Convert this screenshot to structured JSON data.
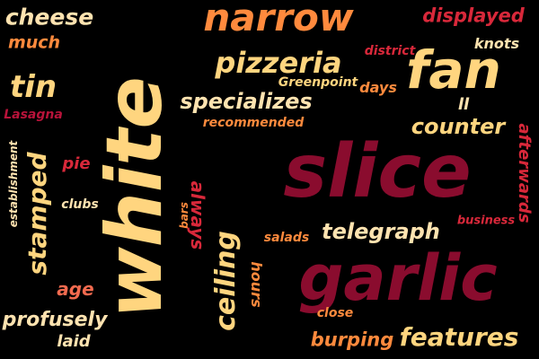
{
  "colors": {
    "background": "#000000",
    "cream": "#FFD57F",
    "peach": "#FFE3B0",
    "orange": "#FF8A3D",
    "coral": "#F26A4F",
    "red": "#D8283A",
    "crimson": "#B8133A",
    "maroon": "#8A0C2E"
  },
  "words": [
    {
      "text": "cheese",
      "color": "peach"
    },
    {
      "text": "much",
      "color": "orange"
    },
    {
      "text": "narrow",
      "color": "orange"
    },
    {
      "text": "displayed",
      "color": "red"
    },
    {
      "text": "knots",
      "color": "peach"
    },
    {
      "text": "pizzeria",
      "color": "cream"
    },
    {
      "text": "district",
      "color": "red"
    },
    {
      "text": "fan",
      "color": "cream"
    },
    {
      "text": "tin",
      "color": "cream"
    },
    {
      "text": "Greenpoint",
      "color": "cream"
    },
    {
      "text": "days",
      "color": "orange"
    },
    {
      "text": "Lasagna",
      "color": "crimson"
    },
    {
      "text": "specializes",
      "color": "peach"
    },
    {
      "text": "recommended",
      "color": "orange"
    },
    {
      "text": "ll",
      "color": "peach"
    },
    {
      "text": "counter",
      "color": "cream"
    },
    {
      "text": "white",
      "color": "cream"
    },
    {
      "text": "slice",
      "color": "maroon"
    },
    {
      "text": "establishment",
      "color": "peach"
    },
    {
      "text": "stamped",
      "color": "cream"
    },
    {
      "text": "pie",
      "color": "red"
    },
    {
      "text": "afterwards",
      "color": "red"
    },
    {
      "text": "clubs",
      "color": "peach"
    },
    {
      "text": "bars",
      "color": "orange"
    },
    {
      "text": "always",
      "color": "red"
    },
    {
      "text": "telegraph",
      "color": "peach"
    },
    {
      "text": "business",
      "color": "red"
    },
    {
      "text": "salads",
      "color": "orange"
    },
    {
      "text": "ceiling",
      "color": "cream"
    },
    {
      "text": "hours",
      "color": "orange"
    },
    {
      "text": "garlic",
      "color": "maroon"
    },
    {
      "text": "age",
      "color": "coral"
    },
    {
      "text": "profusely",
      "color": "peach"
    },
    {
      "text": "close",
      "color": "orange"
    },
    {
      "text": "laid",
      "color": "peach"
    },
    {
      "text": "burping",
      "color": "orange"
    },
    {
      "text": "features",
      "color": "cream"
    }
  ]
}
